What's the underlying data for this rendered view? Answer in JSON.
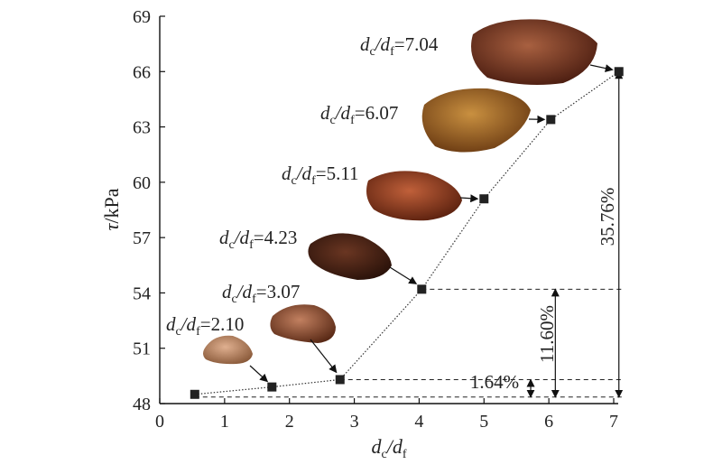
{
  "chart_data": {
    "type": "scatter",
    "title": "",
    "xlabel": {
      "base": "d",
      "sub1": "c",
      "sep": "/d",
      "sub2": "f"
    },
    "ylabel": {
      "italic": "τ",
      "unit": "/kPa"
    },
    "xlim": [
      0,
      7
    ],
    "ylim": [
      48,
      69
    ],
    "xticks": [
      0,
      1,
      2,
      3,
      4,
      5,
      6,
      7
    ],
    "yticks": [
      48,
      51,
      54,
      57,
      60,
      63,
      66,
      69
    ],
    "grid": false,
    "series": [
      {
        "x": [
          0.54,
          1.73,
          2.78,
          4.04,
          5.0,
          6.03,
          7.08
        ],
        "y": [
          48.5,
          48.9,
          49.3,
          54.2,
          59.1,
          63.4,
          66.0
        ]
      }
    ],
    "labels": [
      {
        "value": "2.10",
        "x": 0.54,
        "y": 48.5
      },
      {
        "value": "3.07",
        "x": 1.73,
        "y": 48.9
      },
      {
        "value": "4.23",
        "x": 2.78,
        "y": 49.3
      },
      {
        "value": "5.11",
        "x": 4.04,
        "y": 54.2
      },
      {
        "value": "6.07",
        "x": 5.0,
        "y": 59.1
      },
      {
        "value": "7.04",
        "x": 6.03,
        "y": 63.4
      }
    ],
    "percent_increases": [
      "1.64%",
      "11.60%",
      "35.76%"
    ],
    "colors": {
      "marker": "#222222",
      "line": "#333333",
      "rock1": "#b07a5a",
      "rock2": "#8a4a2a",
      "rock3": "#4a2418",
      "rock4": "#8a3c22",
      "rock5": "#a36a2a",
      "rock6": "#7a3a22"
    }
  }
}
